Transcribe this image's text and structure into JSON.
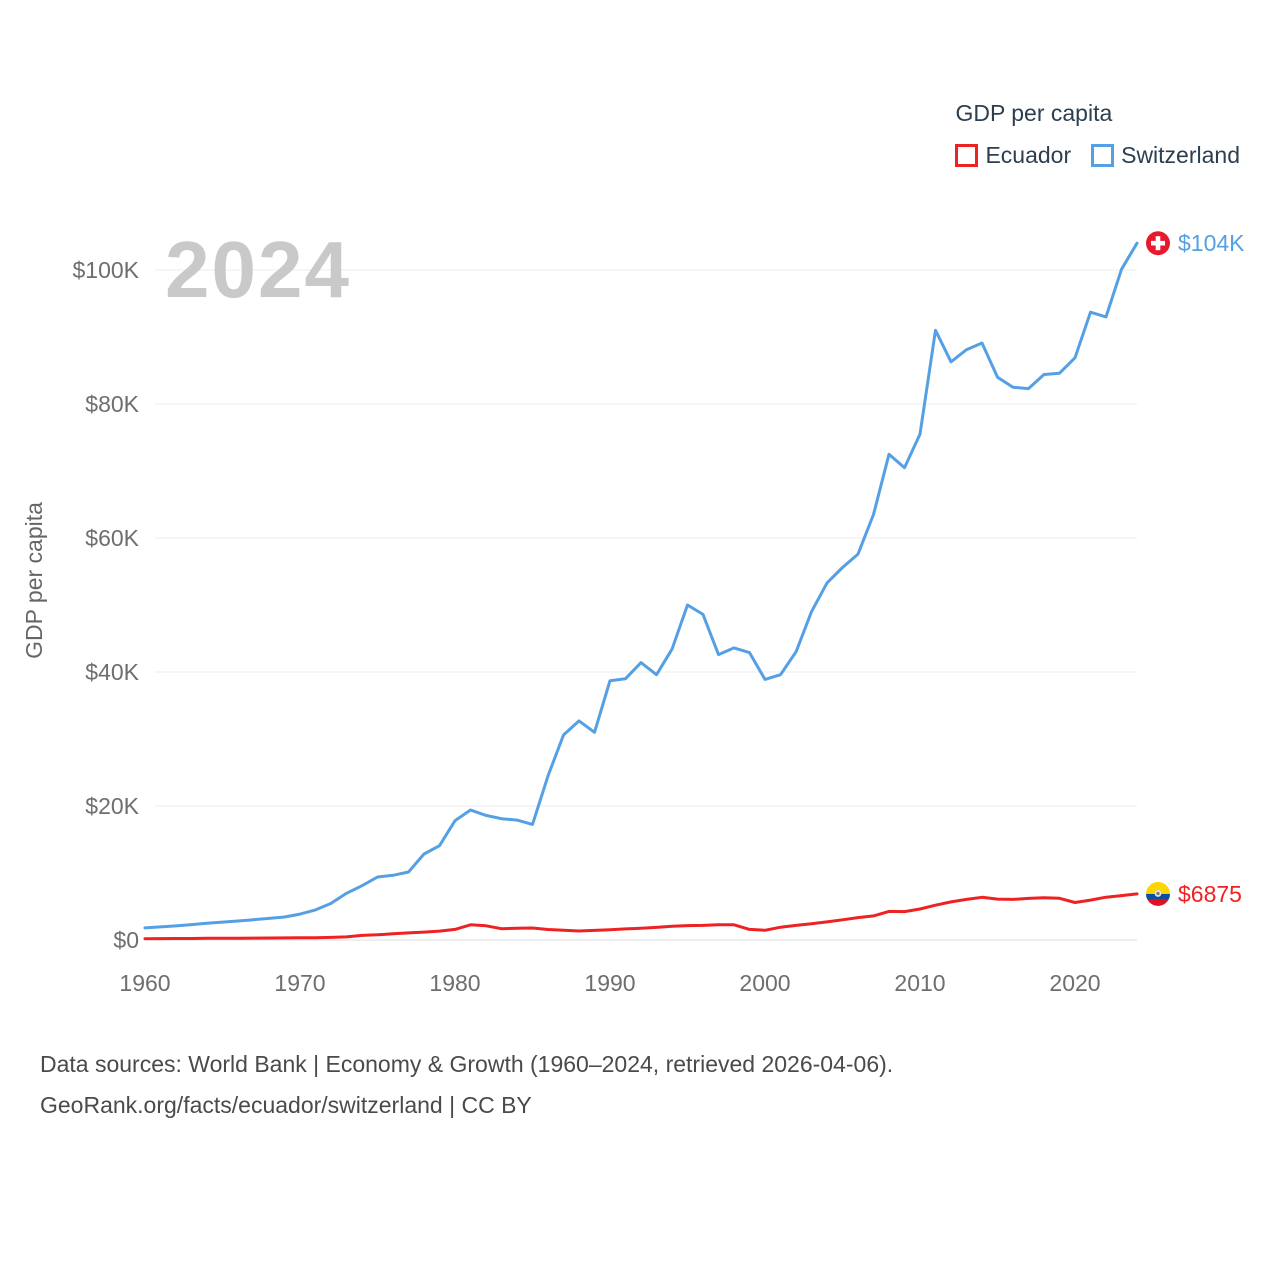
{
  "legend": {
    "title": "GDP per capita",
    "items": [
      {
        "label": "Ecuador",
        "color": "#ee2222"
      },
      {
        "label": "Switzerland",
        "color": "#55a0e4"
      }
    ]
  },
  "watermark": "2024",
  "end_labels": {
    "switzerland": "$104K",
    "ecuador": "$6875"
  },
  "flag_colors": {
    "switzerland": {
      "bg": "#e8192d",
      "cross": "#ffffff"
    },
    "ecuador": {
      "yellow": "#ffd500",
      "blue": "#0b4ea2",
      "red": "#e01020"
    }
  },
  "footer": {
    "line1": "Data sources: World Bank | Economy & Growth (1960–2024, retrieved 2026-04-06).",
    "line2": "GeoRank.org/facts/ecuador/switzerland | CC BY"
  },
  "chart_data": {
    "type": "line",
    "title": "GDP per capita",
    "xlabel": "",
    "ylabel": "GDP per capita",
    "x": [
      1960,
      1961,
      1962,
      1963,
      1964,
      1965,
      1966,
      1967,
      1968,
      1969,
      1970,
      1971,
      1972,
      1973,
      1974,
      1975,
      1976,
      1977,
      1978,
      1979,
      1980,
      1981,
      1982,
      1983,
      1984,
      1985,
      1986,
      1987,
      1988,
      1989,
      1990,
      1991,
      1992,
      1993,
      1994,
      1995,
      1996,
      1997,
      1998,
      1999,
      2000,
      2001,
      2002,
      2003,
      2004,
      2005,
      2006,
      2007,
      2008,
      2009,
      2010,
      2011,
      2012,
      2013,
      2014,
      2015,
      2016,
      2017,
      2018,
      2019,
      2020,
      2021,
      2022,
      2023,
      2024
    ],
    "series": [
      {
        "name": "Ecuador",
        "color": "#ee2222",
        "values": [
          200,
          210,
          220,
          230,
          250,
          260,
          270,
          290,
          300,
          310,
          330,
          350,
          390,
          470,
          680,
          780,
          920,
          1060,
          1180,
          1330,
          1580,
          2270,
          2120,
          1680,
          1740,
          1790,
          1570,
          1470,
          1340,
          1430,
          1540,
          1660,
          1750,
          1880,
          2050,
          2150,
          2180,
          2290,
          2270,
          1580,
          1450,
          1910,
          2180,
          2440,
          2700,
          3020,
          3350,
          3590,
          4270,
          4240,
          4630,
          5200,
          5680,
          6060,
          6380,
          6100,
          6060,
          6210,
          6300,
          6220,
          5600,
          5960,
          6390,
          6630,
          6875
        ]
      },
      {
        "name": "Switzerland",
        "color": "#55a0e4",
        "values": [
          1800,
          1950,
          2100,
          2300,
          2500,
          2670,
          2830,
          3030,
          3220,
          3430,
          3870,
          4490,
          5460,
          6970,
          8100,
          9400,
          9650,
          10150,
          12830,
          14080,
          17810,
          19400,
          18600,
          18100,
          17900,
          17250,
          24500,
          30600,
          32700,
          31000,
          38700,
          39000,
          41400,
          39600,
          43400,
          50000,
          48600,
          42600,
          43600,
          42900,
          38900,
          39600,
          43000,
          49000,
          53300,
          55600,
          57600,
          63500,
          72500,
          70500,
          75500,
          91000,
          86300,
          88100,
          89100,
          84000,
          82500,
          82300,
          84400,
          84600,
          86900,
          93700,
          93000,
          100100,
          104000
        ]
      }
    ],
    "ylim": [
      0,
      104000
    ],
    "grid": true,
    "legend_position": "top-right",
    "y_ticks": [
      {
        "v": 0,
        "label": "$0"
      },
      {
        "v": 20000,
        "label": "$20K"
      },
      {
        "v": 40000,
        "label": "$40K"
      },
      {
        "v": 60000,
        "label": "$60K"
      },
      {
        "v": 80000,
        "label": "$80K"
      },
      {
        "v": 100000,
        "label": "$100K"
      }
    ],
    "x_ticks": [
      {
        "v": 1960,
        "label": "1960"
      },
      {
        "v": 1970,
        "label": "1970"
      },
      {
        "v": 1980,
        "label": "1980"
      },
      {
        "v": 1990,
        "label": "1990"
      },
      {
        "v": 2000,
        "label": "2000"
      },
      {
        "v": 2010,
        "label": "2010"
      },
      {
        "v": 2020,
        "label": "2020"
      }
    ]
  }
}
